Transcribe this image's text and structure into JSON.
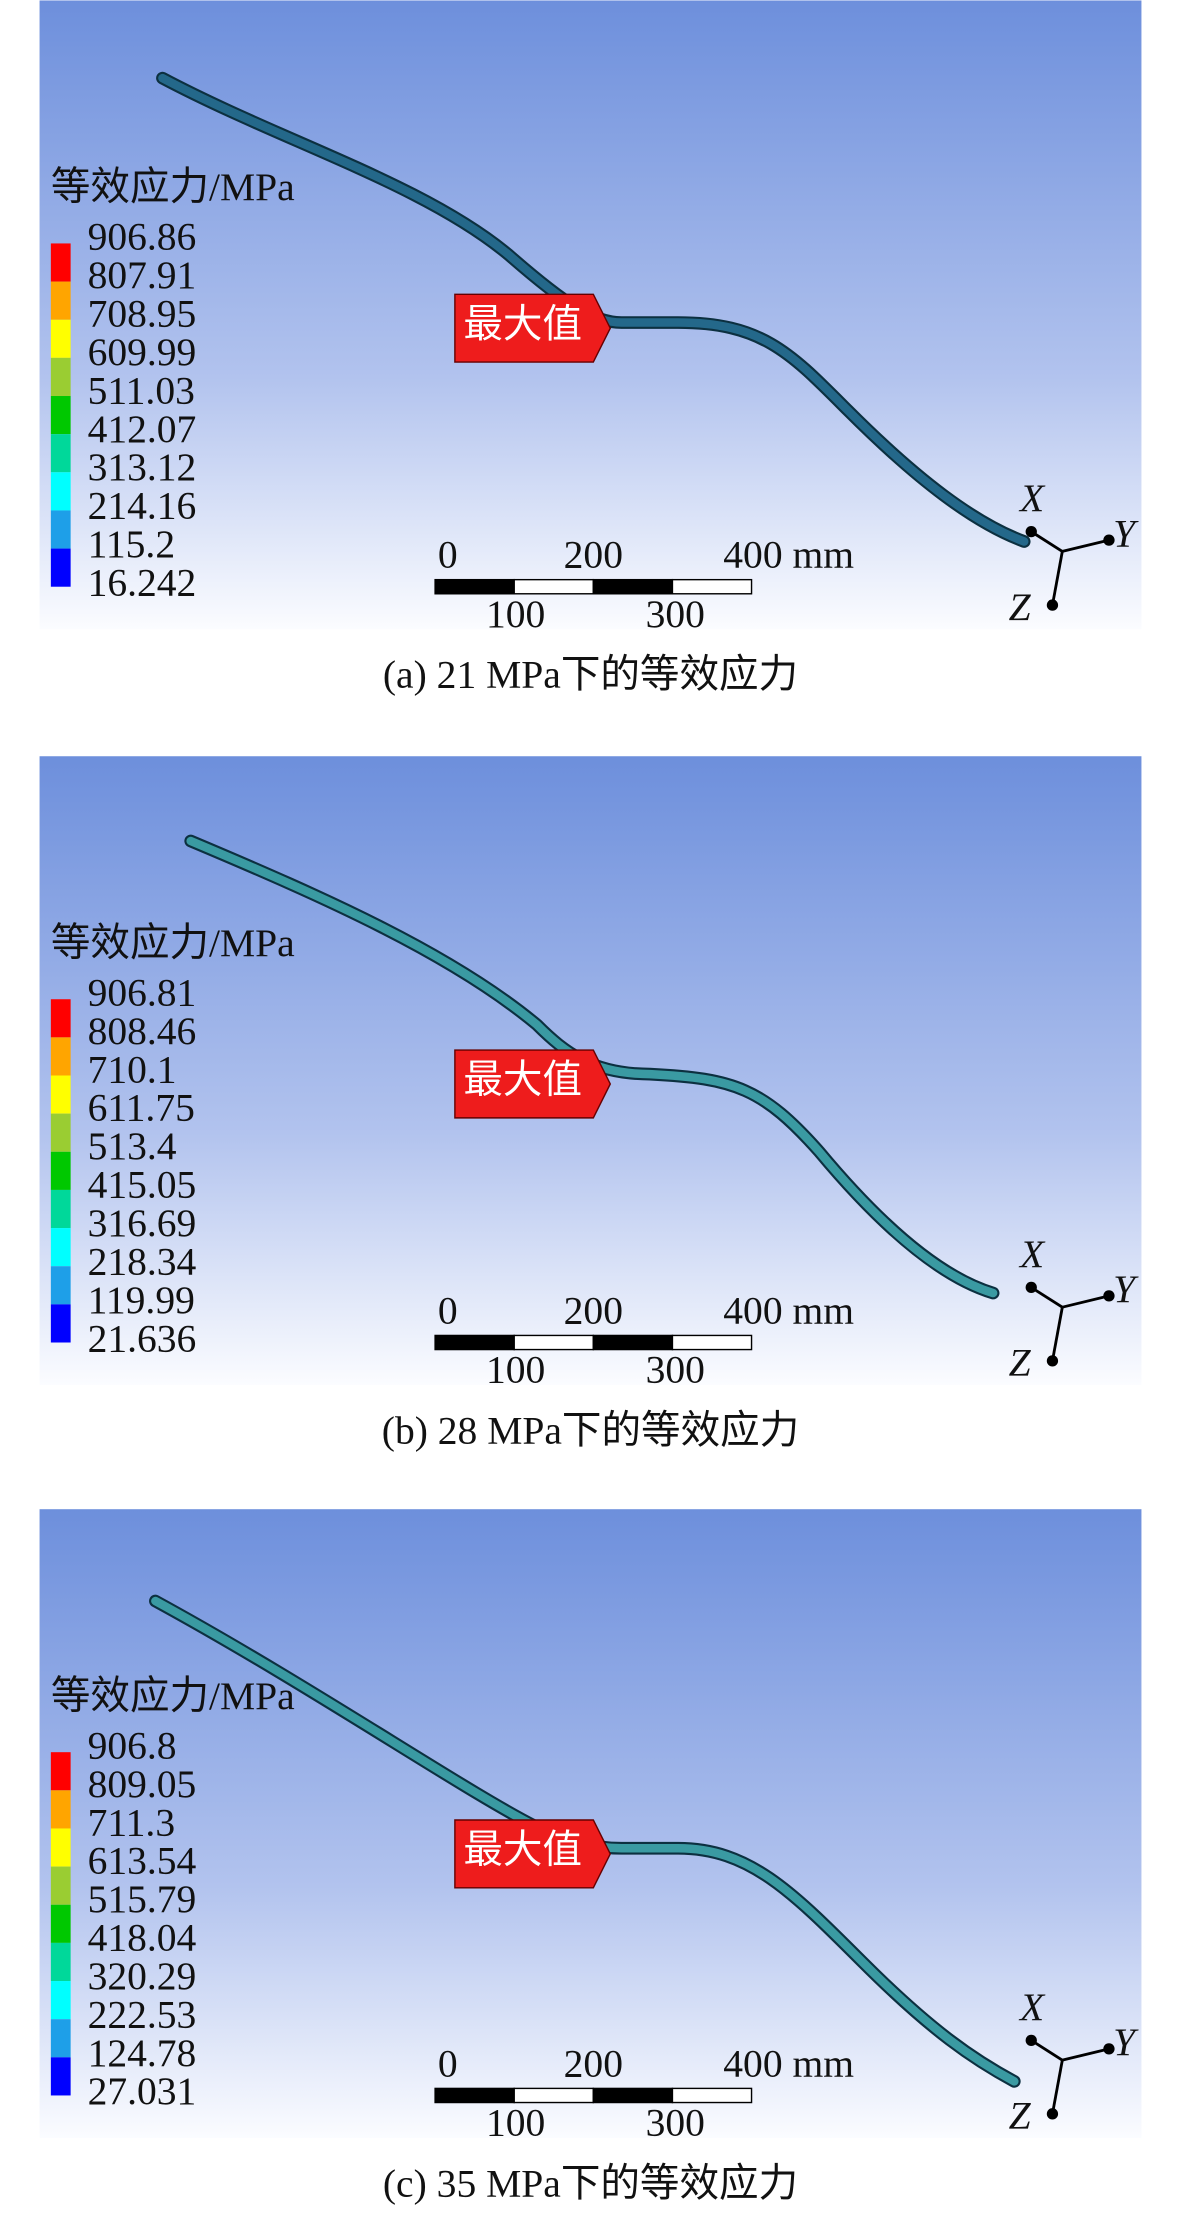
{
  "panels": [
    {
      "legend_title": "等效应力/MPa",
      "legend_values": [
        "906.86",
        "807.91",
        "708.95",
        "609.99",
        "511.03",
        "412.07",
        "313.12",
        "214.16",
        "115.2",
        "16.242"
      ],
      "callout": "最大值",
      "scale_bar": {
        "ticks_top": [
          "0",
          "200",
          "400 mm"
        ],
        "ticks_bottom": [
          "100",
          "300"
        ]
      },
      "axes": {
        "x": "X",
        "y": "Y",
        "z": "Z"
      },
      "caption": "(a) 21 MPa下的等效应力"
    },
    {
      "legend_title": "等效应力/MPa",
      "legend_values": [
        "906.81",
        "808.46",
        "710.1",
        "611.75",
        "513.4",
        "415.05",
        "316.69",
        "218.34",
        "119.99",
        "21.636"
      ],
      "callout": "最大值",
      "scale_bar": {
        "ticks_top": [
          "0",
          "200",
          "400 mm"
        ],
        "ticks_bottom": [
          "100",
          "300"
        ]
      },
      "axes": {
        "x": "X",
        "y": "Y",
        "z": "Z"
      },
      "caption": "(b) 28 MPa下的等效应力"
    },
    {
      "legend_title": "等效应力/MPa",
      "legend_values": [
        "906.8",
        "809.05",
        "711.3",
        "613.54",
        "515.79",
        "418.04",
        "320.29",
        "222.53",
        "124.78",
        "27.031"
      ],
      "callout": "最大值",
      "scale_bar": {
        "ticks_top": [
          "0",
          "200",
          "400 mm"
        ],
        "ticks_bottom": [
          "100",
          "300"
        ]
      },
      "axes": {
        "x": "X",
        "y": "Y",
        "z": "Z"
      },
      "caption": "(c) 35 MPa下的等效应力"
    }
  ]
}
